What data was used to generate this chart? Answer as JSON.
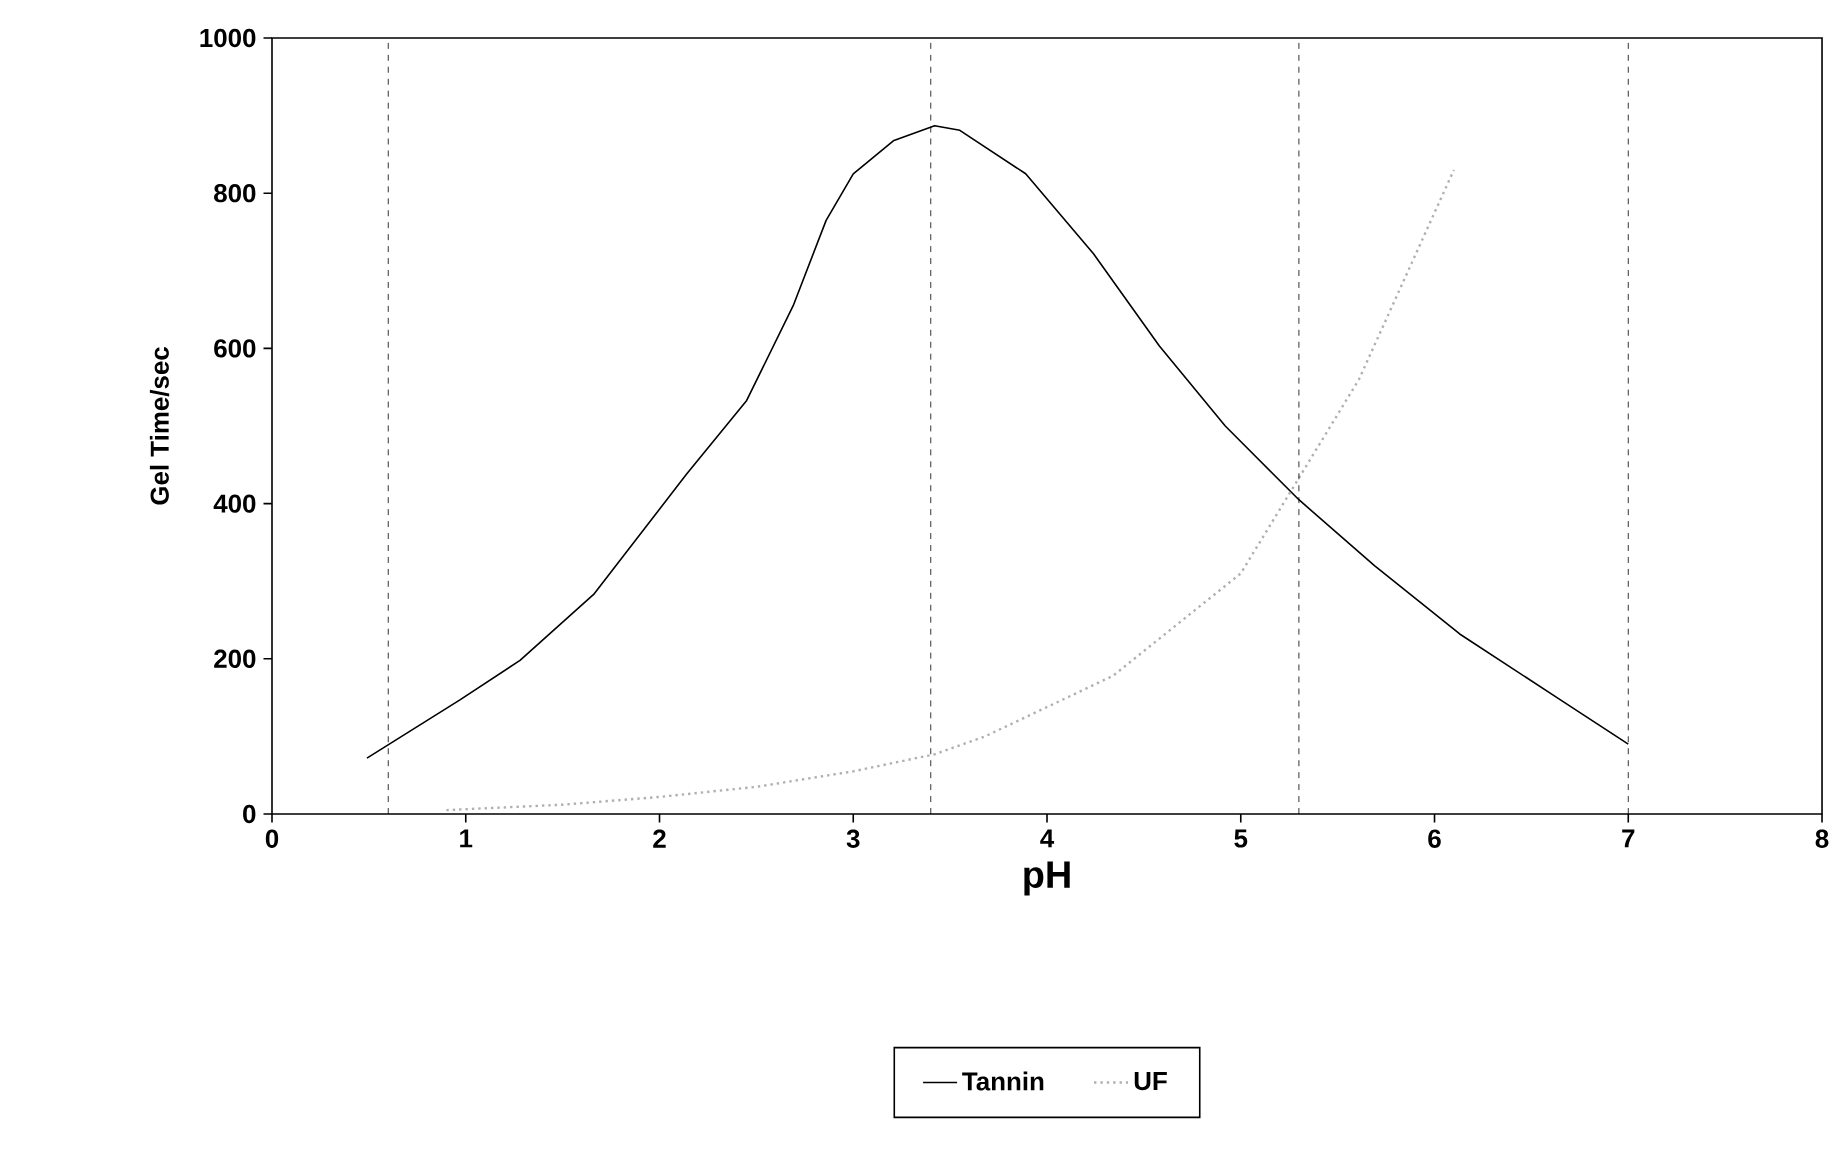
{
  "chart_data": {
    "type": "line",
    "xlabel": "pH",
    "ylabel": "Gel Time/sec",
    "xlim": [
      0,
      8
    ],
    "ylim": [
      0,
      1000
    ],
    "xticks": [
      0,
      1,
      2,
      3,
      4,
      5,
      6,
      7,
      8
    ],
    "yticks": [
      0,
      200,
      400,
      600,
      800,
      1000
    ],
    "legend": "bottom",
    "grid": false,
    "ref_lines": [
      {
        "axis": "x",
        "value": 0.6,
        "line_style": "dashed"
      },
      {
        "axis": "x",
        "value": 3.4,
        "line_style": "dashed"
      },
      {
        "axis": "x",
        "value": 5.3,
        "line_style": "dashed"
      },
      {
        "axis": "x",
        "value": 7.0,
        "line_style": "dashed"
      }
    ],
    "series": [
      {
        "name": "Tannin",
        "color": "#000000",
        "line_style": "solid",
        "x": [
          0.49,
          0.97,
          1.28,
          1.66,
          2.14,
          2.45,
          2.69,
          2.86,
          3.0,
          3.21,
          3.42,
          3.55,
          3.89,
          4.24,
          4.58,
          4.92,
          5.3,
          5.69,
          6.13,
          6.65,
          7.0
        ],
        "values": [
          72,
          147,
          198,
          283,
          438,
          533,
          655,
          765,
          825,
          868,
          887,
          881,
          825,
          722,
          603,
          500,
          405,
          320,
          232,
          147,
          90
        ]
      },
      {
        "name": "UF",
        "color": "#b0b0b0",
        "line_style": "dotted",
        "x": [
          0.9,
          1.5,
          2.0,
          2.5,
          3.0,
          3.42,
          3.68,
          4.34,
          5.0,
          5.61,
          6.1
        ],
        "values": [
          5,
          12,
          22,
          35,
          55,
          77,
          100,
          178,
          310,
          560,
          830
        ]
      }
    ]
  }
}
